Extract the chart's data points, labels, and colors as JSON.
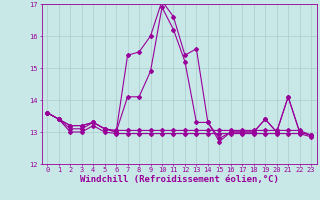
{
  "title": "",
  "xlabel": "Windchill (Refroidissement éolien,°C)",
  "ylabel": "",
  "xlim": [
    -0.5,
    23.5
  ],
  "ylim": [
    12,
    17
  ],
  "yticks": [
    12,
    13,
    14,
    15,
    16,
    17
  ],
  "xticks": [
    0,
    1,
    2,
    3,
    4,
    5,
    6,
    7,
    8,
    9,
    10,
    11,
    12,
    13,
    14,
    15,
    16,
    17,
    18,
    19,
    20,
    21,
    22,
    23
  ],
  "bg_color": "#c8e8e8",
  "line_color": "#990099",
  "grid_color": "#aacccc",
  "series": [
    [
      13.6,
      13.4,
      13.2,
      13.2,
      13.3,
      13.1,
      13.0,
      15.4,
      15.5,
      16.0,
      17.1,
      16.6,
      15.4,
      15.6,
      13.3,
      12.8,
      13.0,
      13.0,
      13.0,
      13.4,
      13.0,
      14.1,
      13.0,
      12.9
    ],
    [
      13.6,
      13.4,
      13.2,
      13.2,
      13.3,
      13.1,
      13.0,
      14.1,
      14.1,
      14.9,
      16.9,
      16.2,
      15.2,
      13.3,
      13.3,
      12.7,
      13.0,
      13.0,
      13.0,
      13.4,
      13.0,
      14.1,
      13.0,
      12.9
    ],
    [
      13.6,
      13.4,
      13.1,
      13.1,
      13.3,
      13.1,
      13.05,
      13.05,
      13.05,
      13.05,
      13.05,
      13.05,
      13.05,
      13.05,
      13.05,
      13.05,
      13.05,
      13.05,
      13.05,
      13.05,
      13.05,
      13.05,
      13.05,
      12.9
    ],
    [
      13.6,
      13.4,
      13.0,
      13.0,
      13.2,
      13.0,
      12.95,
      12.95,
      12.95,
      12.95,
      12.95,
      12.95,
      12.95,
      12.95,
      12.95,
      12.95,
      12.95,
      12.95,
      12.95,
      12.95,
      12.95,
      12.95,
      12.95,
      12.85
    ]
  ],
  "marker": "D",
  "markersize": 2,
  "linewidth": 0.8,
  "tick_fontsize": 5,
  "label_fontsize": 6.5
}
